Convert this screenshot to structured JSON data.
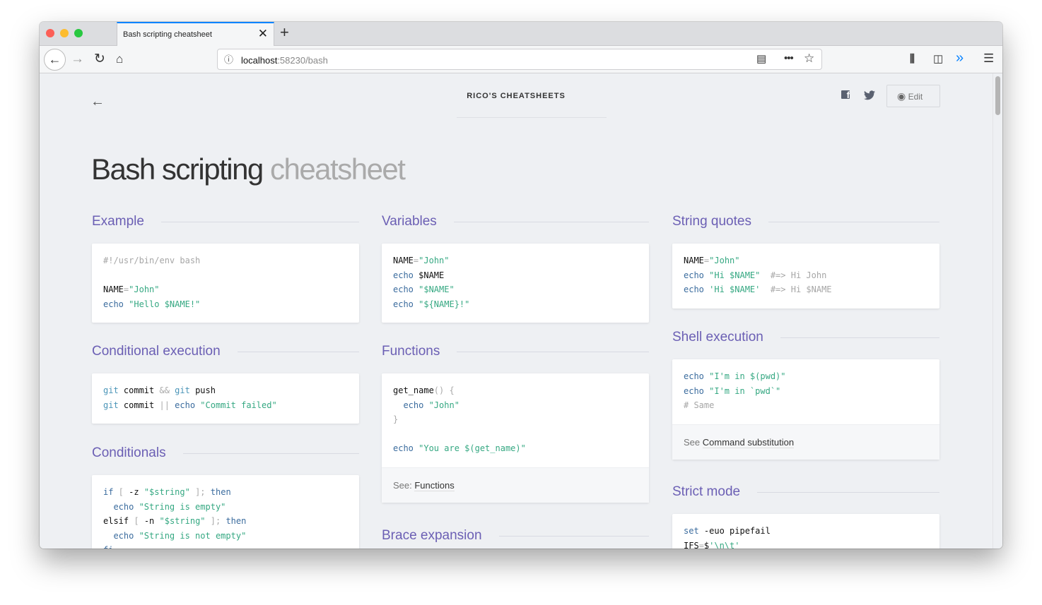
{
  "browser": {
    "tab_title": "Bash scripting cheatsheet",
    "url_host": "localhost",
    "url_path": ":58230/bash",
    "accent": "#0a84ff"
  },
  "site": {
    "brand": "RICO'S CHEATSHEETS",
    "edit_label": "Edit",
    "title_main": "Bash scripting",
    "title_light": "cheatsheet"
  },
  "colors": {
    "heading": "#6b5fb4",
    "keyword": "#3b6c9e",
    "string": "#35a882",
    "comment": "#a6a6a6"
  },
  "sections": [
    {
      "title": "Example",
      "code": [
        [
          [
            "c",
            "#!/usr/bin/env bash"
          ]
        ],
        [],
        [
          [
            "n",
            "NAME"
          ],
          [
            "p",
            "="
          ],
          [
            "s",
            "\"John\""
          ]
        ],
        [
          [
            "k",
            "echo "
          ],
          [
            "s",
            "\"Hello $NAME!\""
          ]
        ]
      ]
    },
    {
      "title": "Conditional execution",
      "code": [
        [
          [
            "g",
            "git"
          ],
          [
            "n",
            " commit "
          ],
          [
            "p",
            "&&"
          ],
          [
            "g",
            " git"
          ],
          [
            "n",
            " push"
          ]
        ],
        [
          [
            "g",
            "git"
          ],
          [
            "n",
            " commit "
          ],
          [
            "p",
            "||"
          ],
          [
            "k",
            " echo "
          ],
          [
            "s",
            "\"Commit failed\""
          ]
        ]
      ]
    },
    {
      "title": "Conditionals",
      "code": [
        [
          [
            "k",
            "if"
          ],
          [
            "p",
            " [ "
          ],
          [
            "n",
            "-z "
          ],
          [
            "s",
            "\"$string\""
          ],
          [
            "p",
            " ]; "
          ],
          [
            "k",
            "then"
          ]
        ],
        [
          [
            "k",
            "  echo "
          ],
          [
            "s",
            "\"String is empty\""
          ]
        ],
        [
          [
            "n",
            "elsif"
          ],
          [
            "p",
            " [ "
          ],
          [
            "n",
            "-n "
          ],
          [
            "s",
            "\"$string\""
          ],
          [
            "p",
            " ]; "
          ],
          [
            "k",
            "then"
          ]
        ],
        [
          [
            "k",
            "  echo "
          ],
          [
            "s",
            "\"String is not empty\""
          ]
        ],
        [
          [
            "k",
            "fi"
          ]
        ]
      ]
    },
    {
      "title": "Variables",
      "code": [
        [
          [
            "n",
            "NAME"
          ],
          [
            "p",
            "="
          ],
          [
            "s",
            "\"John\""
          ]
        ],
        [
          [
            "k",
            "echo "
          ],
          [
            "n",
            "$NAME"
          ]
        ],
        [
          [
            "k",
            "echo "
          ],
          [
            "s",
            "\"$NAME\""
          ]
        ],
        [
          [
            "k",
            "echo "
          ],
          [
            "s",
            "\"${NAME}!\""
          ]
        ]
      ]
    },
    {
      "title": "Functions",
      "code": [
        [
          [
            "n",
            "get_name"
          ],
          [
            "p",
            "() {"
          ]
        ],
        [
          [
            "k",
            "  echo "
          ],
          [
            "s",
            "\"John\""
          ]
        ],
        [
          [
            "p",
            "}"
          ]
        ],
        [],
        [
          [
            "k",
            "echo "
          ],
          [
            "s",
            "\"You are $(get_name)\""
          ]
        ]
      ],
      "footer_prefix": "See: ",
      "footer_link": "Functions"
    },
    {
      "title": "Brace expansion",
      "code": []
    },
    {
      "title": "String quotes",
      "code": [
        [
          [
            "n",
            "NAME"
          ],
          [
            "p",
            "="
          ],
          [
            "s",
            "\"John\""
          ]
        ],
        [
          [
            "k",
            "echo "
          ],
          [
            "s",
            "\"Hi $NAME\""
          ],
          [
            "c",
            "  #=> Hi John"
          ]
        ],
        [
          [
            "k",
            "echo "
          ],
          [
            "s",
            "'Hi $NAME'"
          ],
          [
            "c",
            "  #=> Hi $NAME"
          ]
        ]
      ]
    },
    {
      "title": "Shell execution",
      "code": [
        [
          [
            "k",
            "echo "
          ],
          [
            "s",
            "\"I'm in $(pwd)\""
          ]
        ],
        [
          [
            "k",
            "echo "
          ],
          [
            "s",
            "\"I'm in `pwd`\""
          ]
        ],
        [
          [
            "c",
            "# Same"
          ]
        ]
      ],
      "footer_prefix": "See ",
      "footer_link": "Command substitution"
    },
    {
      "title": "Strict mode",
      "code": [
        [
          [
            "k",
            "set"
          ],
          [
            "n",
            " -euo pipefail"
          ]
        ],
        [
          [
            "n",
            "IFS"
          ],
          [
            "p",
            "="
          ],
          [
            "n",
            "$"
          ],
          [
            "s",
            "'\\n\\t'"
          ]
        ]
      ]
    }
  ]
}
